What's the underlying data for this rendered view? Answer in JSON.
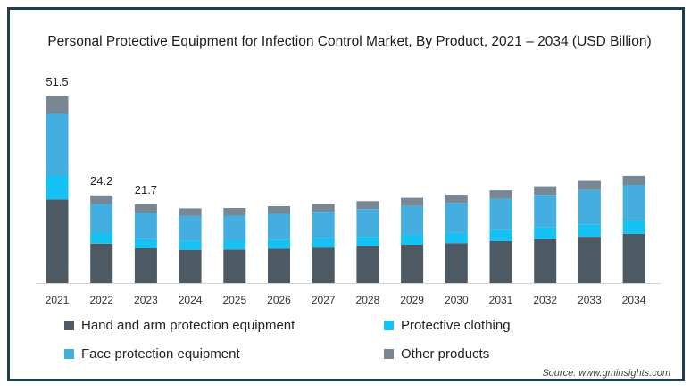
{
  "chart_data": {
    "type": "bar",
    "stacked": true,
    "title": "Personal Protective Equipment for Infection Control Market, By Product, 2021 – 2034 (USD Billion)",
    "categories": [
      "2021",
      "2022",
      "2023",
      "2024",
      "2025",
      "2026",
      "2027",
      "2028",
      "2029",
      "2030",
      "2031",
      "2032",
      "2033",
      "2034"
    ],
    "series": [
      {
        "name": "Hand and arm protection equipment",
        "color": "#4d5963",
        "values": [
          23.1,
          10.9,
          9.6,
          9.2,
          9.3,
          9.5,
          9.8,
          10.2,
          10.6,
          11.0,
          11.6,
          12.1,
          12.8,
          13.6
        ]
      },
      {
        "name": "Protective clothing",
        "color": "#16c1f3",
        "values": [
          6.6,
          2.9,
          2.5,
          2.4,
          2.4,
          2.5,
          2.6,
          2.6,
          2.8,
          2.9,
          3.0,
          3.2,
          3.4,
          3.6
        ]
      },
      {
        "name": "Face protection equipment",
        "color": "#45aee0",
        "values": [
          17.0,
          8.0,
          7.3,
          6.9,
          6.9,
          7.1,
          7.3,
          7.6,
          7.9,
          8.2,
          8.6,
          9.0,
          9.5,
          9.9
        ]
      },
      {
        "name": "Other products",
        "color": "#788794",
        "values": [
          4.8,
          2.4,
          2.3,
          2.1,
          2.1,
          2.1,
          2.1,
          2.2,
          2.2,
          2.3,
          2.4,
          2.4,
          2.5,
          2.5
        ]
      }
    ],
    "data_labels": [
      {
        "category": "2021",
        "text": "51.5"
      },
      {
        "category": "2022",
        "text": "24.2"
      },
      {
        "category": "2023",
        "text": "21.7"
      }
    ],
    "ylim": [
      0,
      51.5
    ],
    "grid": false,
    "legend_position": "bottom",
    "source": "Source: www.gminsights.com"
  }
}
